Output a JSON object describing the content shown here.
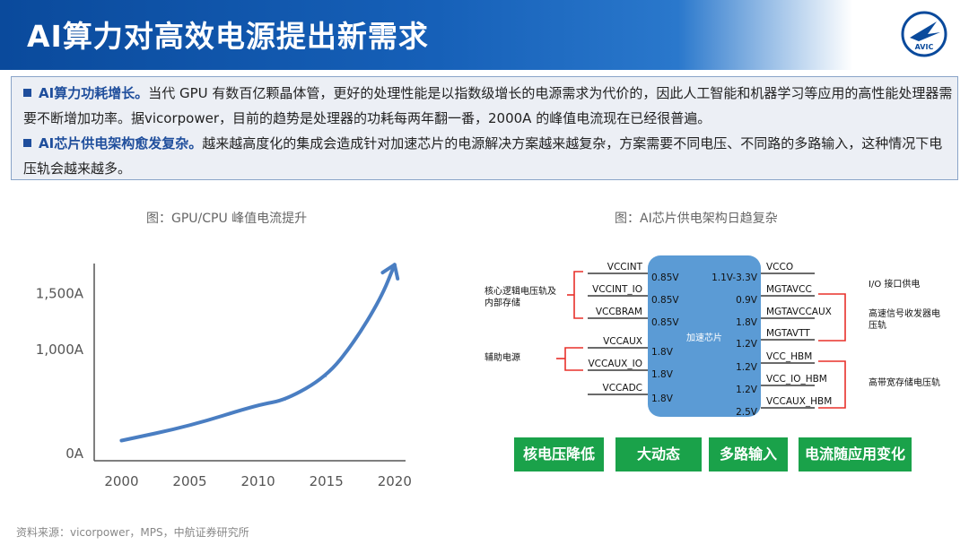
{
  "header": {
    "title": "AI算力对高效电源提出新需求",
    "logo_text": "AVIC",
    "logo_icon": "aircraft-wing-emblem-icon",
    "accent_color": "#0a4a9c"
  },
  "intro": {
    "bullets": [
      {
        "lead": "AI算力功耗增长。",
        "text": "当代 GPU 有数百亿颗晶体管，更好的处理性能是以指数级增长的电源需求为代价的，因此人工智能和机器学习等应用的高性能处理器需要不断增加功率。据vicorpower，目前的趋势是处理器的功耗每两年翻一番，2000A 的峰值电流现在已经很普遍。"
      },
      {
        "lead": "AI芯片供电架构愈发复杂。",
        "text": "越来越高度化的集成会造成针对加速芯片的电源解决方案越来越复杂，方案需要不同电压、不同路的多路输入，这种情况下电压轨会越来越多。"
      }
    ]
  },
  "left_figure": {
    "caption": "图：GPU/CPU 峰值电流提升"
  },
  "chart_data": {
    "type": "line",
    "title": "图：GPU/CPU 峰值电流提升",
    "x": [
      2000,
      2005,
      2010,
      2012,
      2015,
      2017,
      2019,
      2020
    ],
    "values": [
      180,
      310,
      500,
      540,
      750,
      1050,
      1450,
      1750
    ],
    "xticks": [
      "2000",
      "2005",
      "2010",
      "2015",
      "2020"
    ],
    "yticks": [
      "0A",
      "1,000A",
      "1,500A"
    ],
    "ytick_values": [
      0,
      1000,
      1500
    ],
    "ylim": [
      0,
      2000
    ],
    "xlim": [
      1998,
      2021
    ],
    "line_color": "#4a7ec2",
    "arrow_end": true,
    "grid": false
  },
  "right_figure": {
    "caption": "图：AI芯片供电架构日趋复杂",
    "chip_label": "加速芯片",
    "chip_color": "#5b9bd5",
    "bracket_color": "#e8302a",
    "left_rails": [
      {
        "name": "VCCINT",
        "voltage": "0.85V"
      },
      {
        "name": "VCCINT_IO",
        "voltage": "0.85V"
      },
      {
        "name": "VCCBRAM",
        "voltage": "0.85V"
      },
      {
        "name": "VCCAUX",
        "voltage": "1.8V"
      },
      {
        "name": "VCCAUX_IO",
        "voltage": "1.8V"
      },
      {
        "name": "VCCADC",
        "voltage": "1.8V"
      }
    ],
    "right_rails": [
      {
        "name": "VCCO",
        "voltage": "1.1V-3.3V"
      },
      {
        "name": "MGTAVCC",
        "voltage": "0.9V"
      },
      {
        "name": "MGTAVCCAUX",
        "voltage": "1.8V"
      },
      {
        "name": "MGTAVTT",
        "voltage": "1.2V"
      },
      {
        "name": "VCC_HBM",
        "voltage": "1.2V"
      },
      {
        "name": "VCC_IO_HBM",
        "voltage": "1.2V"
      },
      {
        "name": "VCCAUX_HBM",
        "voltage": "2.5V"
      }
    ],
    "left_groups": [
      "核心逻辑电压轨及\n内部存储",
      "辅助电源"
    ],
    "right_groups": [
      "I/O 接口供电",
      "高速信号收发器电\n压轨",
      "高带宽存储电压轨"
    ],
    "buttons": [
      "核电压降低",
      "大动态",
      "多路输入",
      "电流随应用变化"
    ],
    "button_color": "#1aa24a"
  },
  "footer": {
    "source": "资料来源：vicorpower，MPS，中航证券研究所"
  }
}
